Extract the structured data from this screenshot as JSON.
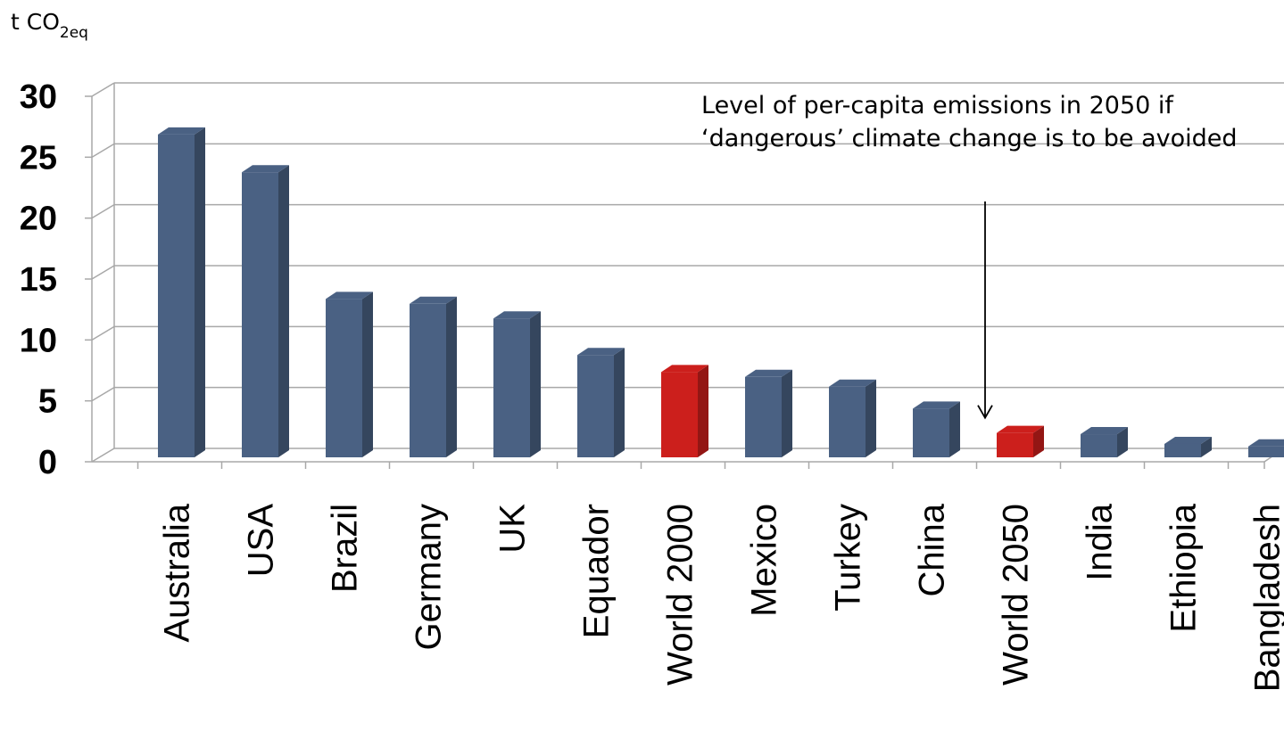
{
  "chart_data": {
    "type": "bar",
    "ylabel_prefix": "t CO",
    "ylabel_sub": "2eq",
    "ylim": [
      0,
      30
    ],
    "yticks": [
      "0",
      "5",
      "10",
      "15",
      "20",
      "25",
      "30"
    ],
    "grid": true,
    "legend": "none",
    "categories": [
      "Australia",
      "USA",
      "Brazil",
      "Germany",
      "UK",
      "Equador",
      "World 2000",
      "Mexico",
      "Turkey",
      "China",
      "World 2050",
      "India",
      "Ethiopia",
      "Bangladesh"
    ],
    "values": [
      26.5,
      23.4,
      13.0,
      12.6,
      11.4,
      8.4,
      7.0,
      6.6,
      5.8,
      4.0,
      2.0,
      1.9,
      1.1,
      0.9
    ],
    "highlighted": [
      "World 2000",
      "World 2050"
    ],
    "annotation": "Level of per-capita emissions in 2050 if ‘dangerous’ climate change is to be avoided",
    "annotation_target": "World 2050"
  },
  "colors": {
    "bar": "#4a6183",
    "bar_highlight": "#cc1f1c",
    "grid": "#a8a8a8"
  }
}
